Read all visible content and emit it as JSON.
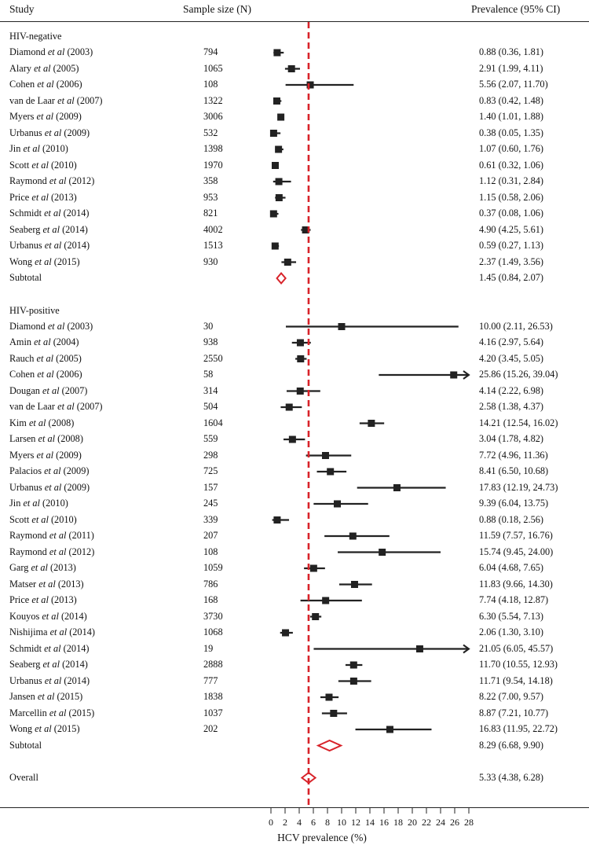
{
  "headers": {
    "study": "Study",
    "sample_size": "Sample size (N)",
    "prevalence": "Prevalence (95% CI)"
  },
  "groups": [
    {
      "title": "HIV-negative",
      "studies": [
        {
          "author": "Diamond",
          "year": "(2003)",
          "n": "794",
          "est": 0.88,
          "lo": 0.36,
          "hi": 1.81,
          "ci_text": "0.88 (0.36, 1.81)"
        },
        {
          "author": "Alary",
          "year": "(2005)",
          "n": "1065",
          "est": 2.91,
          "lo": 1.99,
          "hi": 4.11,
          "ci_text": "2.91 (1.99, 4.11)"
        },
        {
          "author": "Cohen",
          "year": "(2006)",
          "n": "108",
          "est": 5.56,
          "lo": 2.07,
          "hi": 11.7,
          "ci_text": "5.56 (2.07, 11.70)"
        },
        {
          "author": "van de Laar",
          "year": "(2007)",
          "n": "1322",
          "est": 0.83,
          "lo": 0.42,
          "hi": 1.48,
          "ci_text": "0.83 (0.42, 1.48)"
        },
        {
          "author": "Myers",
          "year": "(2009)",
          "n": "3006",
          "est": 1.4,
          "lo": 1.01,
          "hi": 1.88,
          "ci_text": "1.40 (1.01, 1.88)"
        },
        {
          "author": "Urbanus",
          "year": "(2009)",
          "n": "532",
          "est": 0.38,
          "lo": 0.05,
          "hi": 1.35,
          "ci_text": "0.38 (0.05, 1.35)"
        },
        {
          "author": "Jin",
          "year": "(2010)",
          "n": "1398",
          "est": 1.07,
          "lo": 0.6,
          "hi": 1.76,
          "ci_text": "1.07 (0.60, 1.76)"
        },
        {
          "author": "Scott",
          "year": "(2010)",
          "n": "1970",
          "est": 0.61,
          "lo": 0.32,
          "hi": 1.06,
          "ci_text": "0.61 (0.32, 1.06)"
        },
        {
          "author": "Raymond",
          "year": "(2012)",
          "n": "358",
          "est": 1.12,
          "lo": 0.31,
          "hi": 2.84,
          "ci_text": "1.12 (0.31, 2.84)"
        },
        {
          "author": "Price",
          "year": "(2013)",
          "n": "953",
          "est": 1.15,
          "lo": 0.58,
          "hi": 2.06,
          "ci_text": "1.15 (0.58, 2.06)"
        },
        {
          "author": "Schmidt",
          "year": "(2014)",
          "n": "821",
          "est": 0.37,
          "lo": 0.08,
          "hi": 1.06,
          "ci_text": "0.37 (0.08, 1.06)"
        },
        {
          "author": "Seaberg",
          "year": "(2014)",
          "n": "4002",
          "est": 4.9,
          "lo": 4.25,
          "hi": 5.61,
          "ci_text": "4.90 (4.25, 5.61)"
        },
        {
          "author": "Urbanus",
          "year": "(2014)",
          "n": "1513",
          "est": 0.59,
          "lo": 0.27,
          "hi": 1.13,
          "ci_text": "0.59 (0.27, 1.13)"
        },
        {
          "author": "Wong",
          "year": "(2015)",
          "n": "930",
          "est": 2.37,
          "lo": 1.49,
          "hi": 3.56,
          "ci_text": "2.37 (1.49, 3.56)"
        }
      ],
      "subtotal": {
        "label": "Subtotal",
        "est": 1.45,
        "lo": 0.84,
        "hi": 2.07,
        "ci_text": "1.45 (0.84, 2.07)"
      }
    },
    {
      "title": "HIV-positive",
      "studies": [
        {
          "author": "Diamond",
          "year": "(2003)",
          "n": "30",
          "est": 10.0,
          "lo": 2.11,
          "hi": 26.53,
          "ci_text": "10.00 (2.11, 26.53)"
        },
        {
          "author": "Amin",
          "year": "(2004)",
          "n": "938",
          "est": 4.16,
          "lo": 2.97,
          "hi": 5.64,
          "ci_text": "4.16 (2.97, 5.64)"
        },
        {
          "author": "Rauch",
          "year": "(2005)",
          "n": "2550",
          "est": 4.2,
          "lo": 3.45,
          "hi": 5.05,
          "ci_text": "4.20 (3.45, 5.05)"
        },
        {
          "author": "Cohen",
          "year": "(2006)",
          "n": "58",
          "est": 25.86,
          "lo": 15.26,
          "hi": 39.04,
          "ci_text": "25.86 (15.26, 39.04)"
        },
        {
          "author": "Dougan",
          "year": "(2007)",
          "n": "314",
          "est": 4.14,
          "lo": 2.22,
          "hi": 6.98,
          "ci_text": "4.14 (2.22, 6.98)"
        },
        {
          "author": "van de Laar",
          "year": "(2007)",
          "n": "504",
          "est": 2.58,
          "lo": 1.38,
          "hi": 4.37,
          "ci_text": "2.58 (1.38, 4.37)"
        },
        {
          "author": "Kim",
          "year": "(2008)",
          "n": "1604",
          "est": 14.21,
          "lo": 12.54,
          "hi": 16.02,
          "ci_text": "14.21 (12.54, 16.02)"
        },
        {
          "author": "Larsen",
          "year": "(2008)",
          "n": "559",
          "est": 3.04,
          "lo": 1.78,
          "hi": 4.82,
          "ci_text": "3.04 (1.78, 4.82)"
        },
        {
          "author": "Myers",
          "year": "(2009)",
          "n": "298",
          "est": 7.72,
          "lo": 4.96,
          "hi": 11.36,
          "ci_text": "7.72 (4.96, 11.36)"
        },
        {
          "author": "Palacios",
          "year": "(2009)",
          "n": "725",
          "est": 8.41,
          "lo": 6.5,
          "hi": 10.68,
          "ci_text": "8.41 (6.50, 10.68)"
        },
        {
          "author": "Urbanus",
          "year": "(2009)",
          "n": "157",
          "est": 17.83,
          "lo": 12.19,
          "hi": 24.73,
          "ci_text": "17.83 (12.19, 24.73)"
        },
        {
          "author": "Jin",
          "year": "(2010)",
          "n": "245",
          "est": 9.39,
          "lo": 6.04,
          "hi": 13.75,
          "ci_text": "9.39 (6.04, 13.75)"
        },
        {
          "author": "Scott",
          "year": "(2010)",
          "n": "339",
          "est": 0.88,
          "lo": 0.18,
          "hi": 2.56,
          "ci_text": "0.88 (0.18, 2.56)"
        },
        {
          "author": "Raymond",
          "year": "(2011)",
          "n": "207",
          "est": 11.59,
          "lo": 7.57,
          "hi": 16.76,
          "ci_text": "11.59 (7.57, 16.76)"
        },
        {
          "author": "Raymond",
          "year": "(2012)",
          "n": "108",
          "est": 15.74,
          "lo": 9.45,
          "hi": 24.0,
          "ci_text": "15.74 (9.45, 24.00)"
        },
        {
          "author": "Garg",
          "year": "(2013)",
          "n": "1059",
          "est": 6.04,
          "lo": 4.68,
          "hi": 7.65,
          "ci_text": "6.04 (4.68, 7.65)"
        },
        {
          "author": "Matser",
          "year": "(2013)",
          "n": "786",
          "est": 11.83,
          "lo": 9.66,
          "hi": 14.3,
          "ci_text": "11.83 (9.66, 14.30)"
        },
        {
          "author": "Price",
          "year": "(2013)",
          "n": "168",
          "est": 7.74,
          "lo": 4.18,
          "hi": 12.87,
          "ci_text": "7.74 (4.18, 12.87)"
        },
        {
          "author": "Kouyos",
          "year": "(2014)",
          "n": "3730",
          "est": 6.3,
          "lo": 5.54,
          "hi": 7.13,
          "ci_text": "6.30 (5.54, 7.13)"
        },
        {
          "author": "Nishijima",
          "year": "(2014)",
          "n": "1068",
          "est": 2.06,
          "lo": 1.3,
          "hi": 3.1,
          "ci_text": "2.06 (1.30, 3.10)"
        },
        {
          "author": "Schmidt",
          "year": "(2014)",
          "n": "19",
          "est": 21.05,
          "lo": 6.05,
          "hi": 45.57,
          "ci_text": "21.05 (6.05, 45.57)"
        },
        {
          "author": "Seaberg",
          "year": "(2014)",
          "n": "2888",
          "est": 11.7,
          "lo": 10.55,
          "hi": 12.93,
          "ci_text": "11.70 (10.55, 12.93)"
        },
        {
          "author": "Urbanus",
          "year": "(2014)",
          "n": "777",
          "est": 11.71,
          "lo": 9.54,
          "hi": 14.18,
          "ci_text": "11.71 (9.54, 14.18)"
        },
        {
          "author": "Jansen",
          "year": "(2015)",
          "n": "1838",
          "est": 8.22,
          "lo": 7.0,
          "hi": 9.57,
          "ci_text": "8.22 (7.00, 9.57)"
        },
        {
          "author": "Marcellin",
          "year": "(2015)",
          "n": "1037",
          "est": 8.87,
          "lo": 7.21,
          "hi": 10.77,
          "ci_text": "8.87 (7.21, 10.77)"
        },
        {
          "author": "Wong",
          "year": "(2015)",
          "n": "202",
          "est": 16.83,
          "lo": 11.95,
          "hi": 22.72,
          "ci_text": "16.83 (11.95, 22.72)"
        }
      ],
      "subtotal": {
        "label": "Subtotal",
        "est": 8.29,
        "lo": 6.68,
        "hi": 9.9,
        "ci_text": "8.29 (6.68, 9.90)"
      }
    }
  ],
  "overall": {
    "label": "Overall",
    "est": 5.33,
    "lo": 4.38,
    "hi": 6.28,
    "ci_text": "5.33 (4.38, 6.28)"
  },
  "et_al": "et al",
  "chart_data": {
    "type": "forest",
    "xlabel": "HCV prevalence (%)",
    "xlim": [
      0,
      28
    ],
    "xticks": [
      0,
      2,
      4,
      6,
      8,
      10,
      12,
      14,
      16,
      18,
      20,
      22,
      24,
      26,
      28
    ],
    "reference_line": 5.33,
    "reference_color": "#d8232a",
    "diamond_color": "#d8232a",
    "marker_color": "#222222"
  }
}
